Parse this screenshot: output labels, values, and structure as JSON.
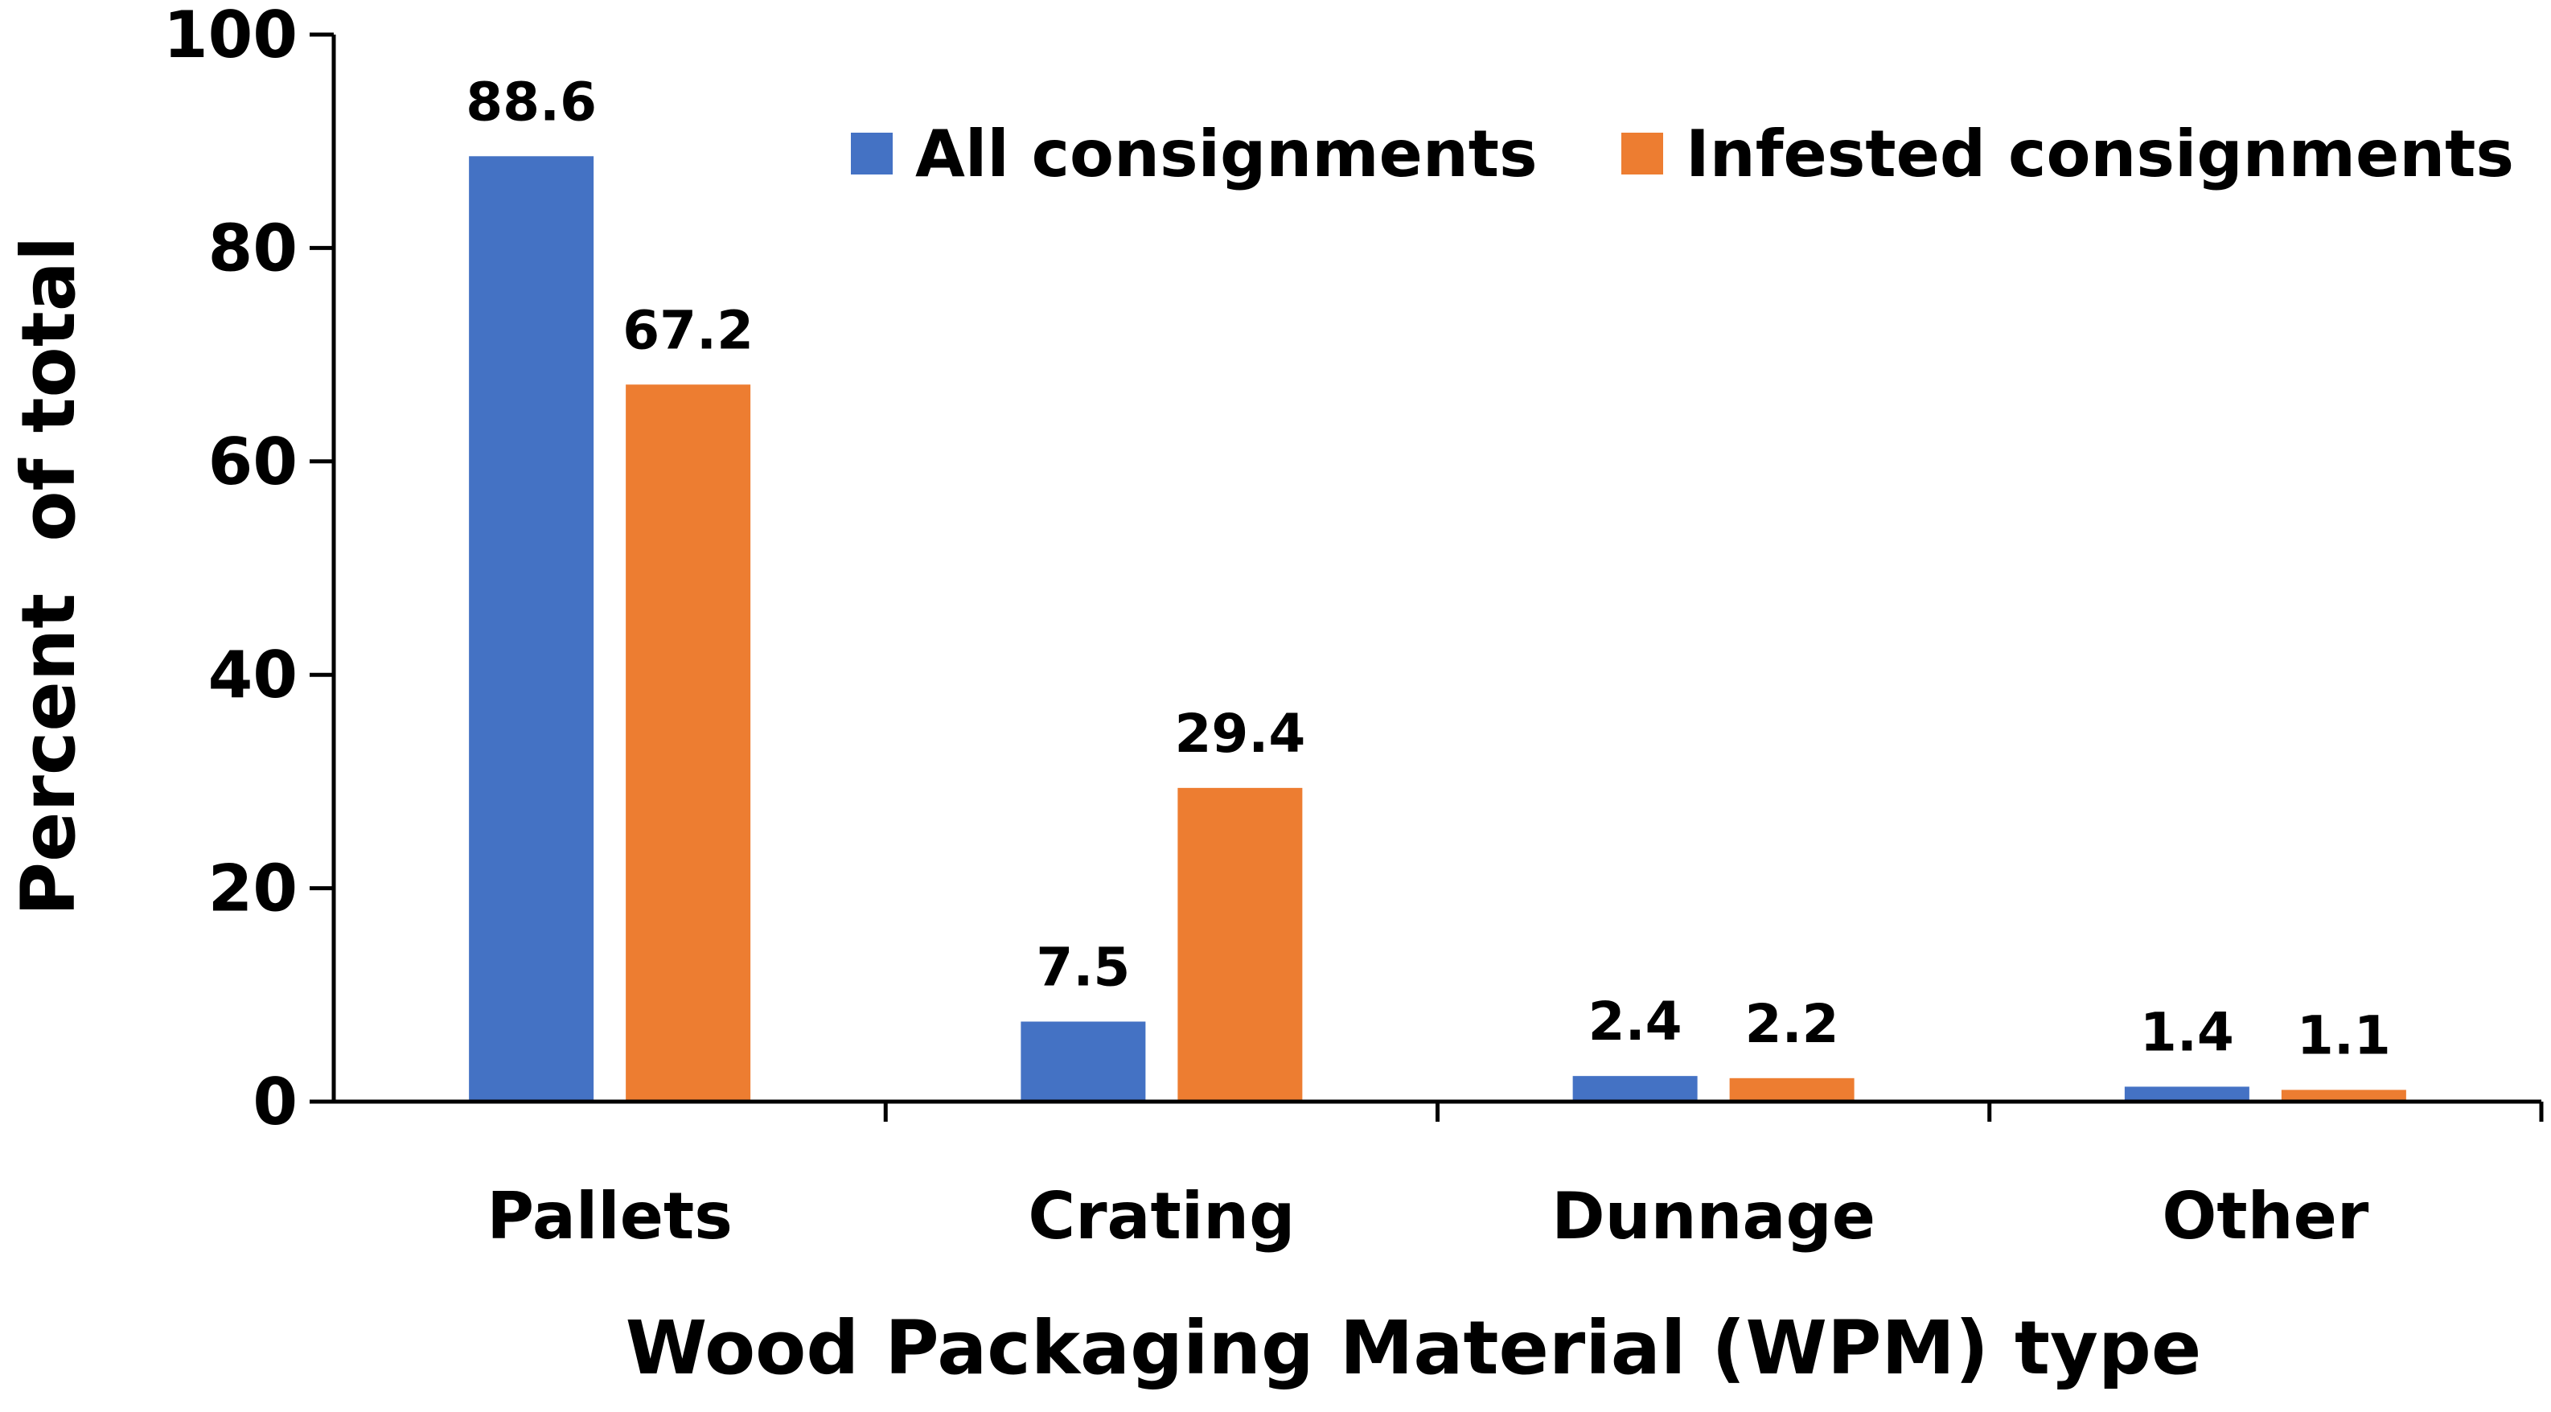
{
  "chart_data": {
    "type": "bar",
    "categories": [
      "Pallets",
      "Crating",
      "Dunnage",
      "Other"
    ],
    "series": [
      {
        "name": "All consignments",
        "color": "#4472c4",
        "values": [
          88.6,
          7.5,
          2.4,
          1.4
        ],
        "labels": [
          "88.6",
          "7.5",
          "2.4",
          "1.4"
        ]
      },
      {
        "name": "Infested consignments",
        "color": "#ed7d31",
        "values": [
          67.2,
          29.4,
          2.2,
          1.1
        ],
        "labels": [
          "67.2",
          "29.4",
          "2.2",
          "1.1"
        ]
      }
    ],
    "xlabel": "Wood Packaging Material (WPM) type",
    "ylabel": "Percent  of total",
    "ylim": [
      0,
      100
    ],
    "yticks": [
      "0",
      "20",
      "40",
      "60",
      "80",
      "100"
    ],
    "legend_position": "top-right",
    "grid": false
  }
}
